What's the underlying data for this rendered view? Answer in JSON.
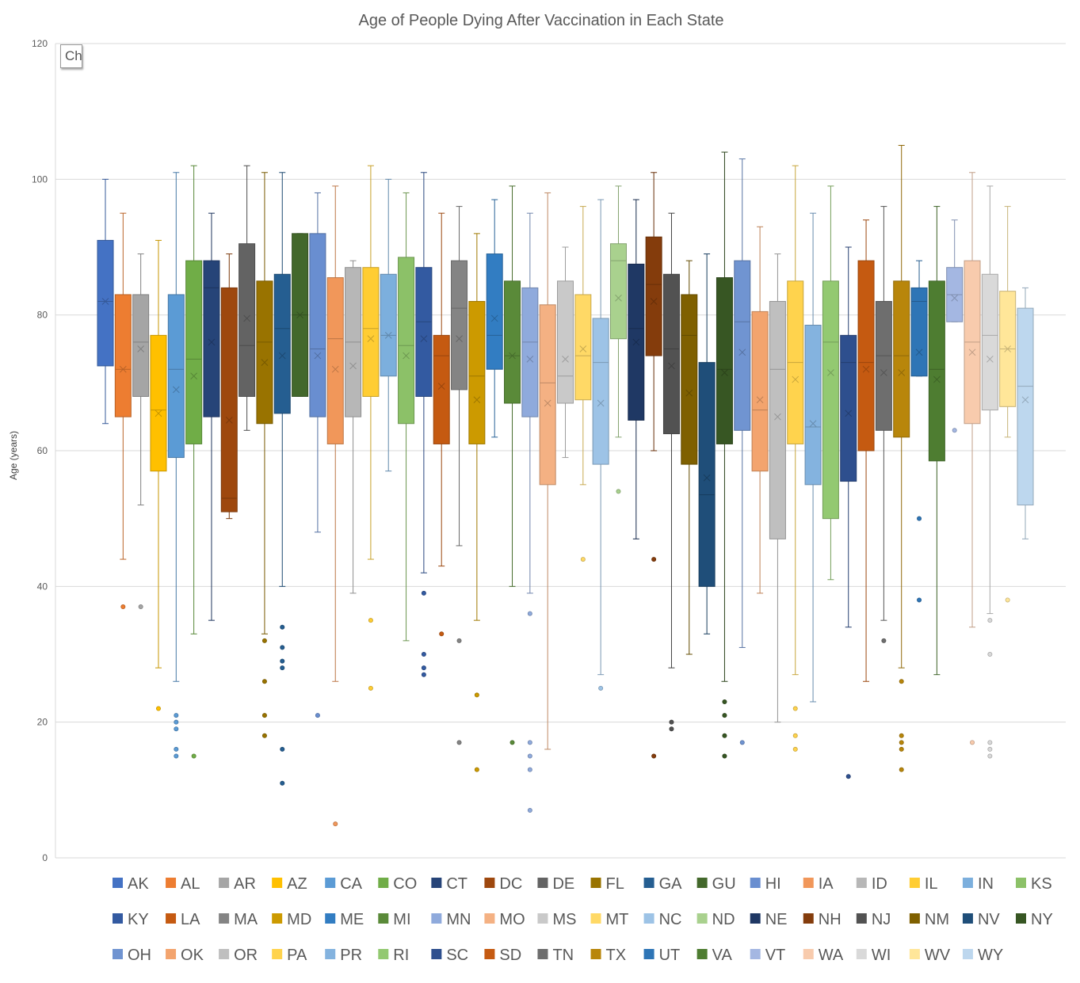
{
  "chart_data": {
    "type": "boxplot",
    "title": "Age of People Dying After Vaccination in Each State",
    "ylabel": "Age (years)",
    "xlabel": "",
    "ylim": [
      0,
      120
    ],
    "yticks": [
      0,
      20,
      40,
      60,
      80,
      100,
      120
    ],
    "grid": true,
    "legend_position": "bottom",
    "series": [
      {
        "name": "AK",
        "color": "#4472C4",
        "min": 64,
        "q1": 72.5,
        "median": 82,
        "q3": 91,
        "max": 100,
        "mean": 82,
        "outliers": []
      },
      {
        "name": "AL",
        "color": "#ED7D31",
        "min": 44,
        "q1": 65,
        "median": 72,
        "q3": 83,
        "max": 95,
        "mean": 72,
        "outliers": [
          37
        ]
      },
      {
        "name": "AR",
        "color": "#A5A5A5",
        "min": 52,
        "q1": 68,
        "median": 76,
        "q3": 83,
        "max": 89,
        "mean": 75,
        "outliers": [
          37
        ]
      },
      {
        "name": "AZ",
        "color": "#FFC000",
        "min": 28,
        "q1": 57,
        "median": 66,
        "q3": 77,
        "max": 91,
        "mean": 65.5,
        "outliers": [
          22
        ]
      },
      {
        "name": "CA",
        "color": "#5B9BD5",
        "min": 26,
        "q1": 59,
        "median": 72,
        "q3": 83,
        "max": 101,
        "mean": 69,
        "outliers": [
          21,
          20,
          19,
          16,
          15
        ]
      },
      {
        "name": "CO",
        "color": "#70AD47",
        "min": 33,
        "q1": 61,
        "median": 73.5,
        "q3": 88,
        "max": 102,
        "mean": 71,
        "outliers": [
          15
        ]
      },
      {
        "name": "CT",
        "color": "#264478",
        "min": 35,
        "q1": 65,
        "median": 84,
        "q3": 88,
        "max": 95,
        "mean": 76,
        "outliers": []
      },
      {
        "name": "DC",
        "color": "#9E480E",
        "min": 50,
        "q1": 51,
        "median": 53,
        "q3": 84,
        "max": 89,
        "mean": 64.5,
        "outliers": []
      },
      {
        "name": "DE",
        "color": "#636363",
        "min": 63,
        "q1": 68,
        "median": 75.5,
        "q3": 90.5,
        "max": 102,
        "mean": 79.5,
        "outliers": []
      },
      {
        "name": "FL",
        "color": "#997300",
        "min": 33,
        "q1": 64,
        "median": 76,
        "q3": 85,
        "max": 101,
        "mean": 73,
        "outliers": [
          32,
          26,
          21,
          18
        ]
      },
      {
        "name": "GA",
        "color": "#255E91",
        "min": 40,
        "q1": 65.5,
        "median": 78,
        "q3": 86,
        "max": 101,
        "mean": 74,
        "outliers": [
          34,
          31,
          29,
          28,
          16,
          11
        ]
      },
      {
        "name": "GU",
        "color": "#43682B",
        "min": 68,
        "q1": 68,
        "median": 80,
        "q3": 92,
        "max": 92,
        "mean": 80,
        "outliers": []
      },
      {
        "name": "HI",
        "color": "#698ED0",
        "min": 48,
        "q1": 65,
        "median": 75,
        "q3": 92,
        "max": 98,
        "mean": 74,
        "outliers": [
          21
        ]
      },
      {
        "name": "IA",
        "color": "#F1975A",
        "min": 26,
        "q1": 61,
        "median": 76.5,
        "q3": 85.5,
        "max": 99,
        "mean": 72,
        "outliers": [
          5
        ]
      },
      {
        "name": "ID",
        "color": "#B7B7B7",
        "min": 39,
        "q1": 65,
        "median": 76,
        "q3": 87,
        "max": 88,
        "mean": 72.5,
        "outliers": []
      },
      {
        "name": "IL",
        "color": "#FFCD33",
        "min": 44,
        "q1": 68,
        "median": 78,
        "q3": 87,
        "max": 102,
        "mean": 76.5,
        "outliers": [
          35,
          25
        ]
      },
      {
        "name": "IN",
        "color": "#7CAFDD",
        "min": 57,
        "q1": 71,
        "median": 77,
        "q3": 86,
        "max": 100,
        "mean": 77,
        "outliers": []
      },
      {
        "name": "KS",
        "color": "#8CC168",
        "min": 32,
        "q1": 64,
        "median": 75.5,
        "q3": 88.5,
        "max": 98,
        "mean": 74,
        "outliers": []
      },
      {
        "name": "KY",
        "color": "#335AA1",
        "min": 42,
        "q1": 68,
        "median": 79,
        "q3": 87,
        "max": 101,
        "mean": 76.5,
        "outliers": [
          39,
          30,
          28,
          27
        ]
      },
      {
        "name": "LA",
        "color": "#C55A11",
        "min": 43,
        "q1": 61,
        "median": 74,
        "q3": 77,
        "max": 95,
        "mean": 69.5,
        "outliers": [
          33
        ]
      },
      {
        "name": "MA",
        "color": "#848484",
        "min": 46,
        "q1": 69,
        "median": 81,
        "q3": 88,
        "max": 96,
        "mean": 76.5,
        "outliers": [
          32,
          17
        ]
      },
      {
        "name": "MD",
        "color": "#CC9A00",
        "min": 35,
        "q1": 61,
        "median": 71,
        "q3": 82,
        "max": 92,
        "mean": 67.5,
        "outliers": [
          24,
          13
        ]
      },
      {
        "name": "ME",
        "color": "#327DC2",
        "min": 62,
        "q1": 72,
        "median": 77,
        "q3": 89,
        "max": 97,
        "mean": 79.5,
        "outliers": []
      },
      {
        "name": "MI",
        "color": "#5A8A39",
        "min": 40,
        "q1": 67,
        "median": 74,
        "q3": 85,
        "max": 99,
        "mean": 74,
        "outliers": [
          17
        ]
      },
      {
        "name": "MN",
        "color": "#8FAADC",
        "min": 39,
        "q1": 65,
        "median": 76,
        "q3": 84,
        "max": 95,
        "mean": 73.5,
        "outliers": [
          36,
          17,
          15,
          13,
          7
        ]
      },
      {
        "name": "MO",
        "color": "#F4B183",
        "min": 16,
        "q1": 55,
        "median": 70,
        "q3": 81.5,
        "max": 98,
        "mean": 67,
        "outliers": []
      },
      {
        "name": "MS",
        "color": "#C9C9C9",
        "min": 59,
        "q1": 67,
        "median": 71,
        "q3": 85,
        "max": 90,
        "mean": 73.5,
        "outliers": []
      },
      {
        "name": "MT",
        "color": "#FFD966",
        "min": 55,
        "q1": 67.5,
        "median": 74,
        "q3": 83,
        "max": 96,
        "mean": 75,
        "outliers": [
          44
        ]
      },
      {
        "name": "NC",
        "color": "#9DC3E6",
        "min": 27,
        "q1": 58,
        "median": 73,
        "q3": 79.5,
        "max": 97,
        "mean": 67,
        "outliers": [
          25
        ]
      },
      {
        "name": "ND",
        "color": "#A9D18E",
        "min": 62,
        "q1": 76.5,
        "median": 88,
        "q3": 90.5,
        "max": 99,
        "mean": 82.5,
        "outliers": [
          54
        ]
      },
      {
        "name": "NE",
        "color": "#1F3864",
        "min": 47,
        "q1": 64.5,
        "median": 78,
        "q3": 87.5,
        "max": 97,
        "mean": 76,
        "outliers": []
      },
      {
        "name": "NH",
        "color": "#843C0C",
        "min": 60,
        "q1": 74,
        "median": 84.5,
        "q3": 91.5,
        "max": 101,
        "mean": 82,
        "outliers": [
          44,
          15
        ]
      },
      {
        "name": "NJ",
        "color": "#525252",
        "min": 28,
        "q1": 62.5,
        "median": 75,
        "q3": 86,
        "max": 95,
        "mean": 72.5,
        "outliers": [
          20,
          19
        ]
      },
      {
        "name": "NM",
        "color": "#7F6000",
        "min": 30,
        "q1": 58,
        "median": 77,
        "q3": 83,
        "max": 88,
        "mean": 68.5,
        "outliers": []
      },
      {
        "name": "NV",
        "color": "#1F4E79",
        "min": 33,
        "q1": 40,
        "median": 53.5,
        "q3": 73,
        "max": 89,
        "mean": 56,
        "outliers": []
      },
      {
        "name": "NY",
        "color": "#375623",
        "min": 26,
        "q1": 61,
        "median": 72,
        "q3": 85.5,
        "max": 104,
        "mean": 71.5,
        "outliers": [
          23,
          21,
          18,
          15
        ]
      },
      {
        "name": "OH",
        "color": "#7094D1",
        "min": 31,
        "q1": 63,
        "median": 79,
        "q3": 88,
        "max": 103,
        "mean": 74.5,
        "outliers": [
          17
        ]
      },
      {
        "name": "OK",
        "color": "#F3A46E",
        "min": 39,
        "q1": 57,
        "median": 66,
        "q3": 80.5,
        "max": 93,
        "mean": 67.5,
        "outliers": []
      },
      {
        "name": "OR",
        "color": "#BFBFBF",
        "min": 20,
        "q1": 47,
        "median": 72,
        "q3": 82,
        "max": 89,
        "mean": 65,
        "outliers": []
      },
      {
        "name": "PA",
        "color": "#FFD34D",
        "min": 27,
        "q1": 61,
        "median": 73,
        "q3": 85,
        "max": 102,
        "mean": 70.5,
        "outliers": [
          22,
          18,
          16
        ]
      },
      {
        "name": "PR",
        "color": "#84B3DF",
        "min": 23,
        "q1": 55,
        "median": 63.5,
        "q3": 78.5,
        "max": 95,
        "mean": 64,
        "outliers": []
      },
      {
        "name": "RI",
        "color": "#93C971",
        "min": 41,
        "q1": 50,
        "median": 76,
        "q3": 85,
        "max": 99,
        "mean": 71.5,
        "outliers": []
      },
      {
        "name": "SC",
        "color": "#2E4F8E",
        "min": 34,
        "q1": 55.5,
        "median": 73,
        "q3": 77,
        "max": 90,
        "mean": 65.5,
        "outliers": [
          12
        ]
      },
      {
        "name": "SD",
        "color": "#C55A11",
        "min": 26,
        "q1": 60,
        "median": 73,
        "q3": 88,
        "max": 94,
        "mean": 72,
        "outliers": []
      },
      {
        "name": "TN",
        "color": "#6E6E6E",
        "min": 35,
        "q1": 63,
        "median": 74,
        "q3": 82,
        "max": 96,
        "mean": 71.5,
        "outliers": [
          32
        ]
      },
      {
        "name": "TX",
        "color": "#B8860B",
        "min": 28,
        "q1": 62,
        "median": 74,
        "q3": 85,
        "max": 105,
        "mean": 71.5,
        "outliers": [
          26,
          18,
          17,
          16,
          13
        ]
      },
      {
        "name": "UT",
        "color": "#2E75B6",
        "min": 71,
        "q1": 71,
        "median": 82,
        "q3": 84,
        "max": 88,
        "mean": 74.5,
        "outliers": [
          50,
          38
        ]
      },
      {
        "name": "VA",
        "color": "#4E7D31",
        "min": 27,
        "q1": 58.5,
        "median": 72,
        "q3": 85,
        "max": 96,
        "mean": 70.5,
        "outliers": []
      },
      {
        "name": "VT",
        "color": "#A4B7E2",
        "min": 79,
        "q1": 79,
        "median": 83,
        "q3": 87,
        "max": 94,
        "mean": 82.5,
        "outliers": [
          63
        ]
      },
      {
        "name": "WA",
        "color": "#F8CBAD",
        "min": 34,
        "q1": 64,
        "median": 76,
        "q3": 88,
        "max": 101,
        "mean": 74.5,
        "outliers": [
          17
        ]
      },
      {
        "name": "WI",
        "color": "#D9D9D9",
        "min": 36,
        "q1": 66,
        "median": 77,
        "q3": 86,
        "max": 99,
        "mean": 73.5,
        "outliers": [
          35,
          30,
          17,
          16,
          15
        ]
      },
      {
        "name": "WV",
        "color": "#FFE699",
        "min": 62,
        "q1": 66.5,
        "median": 75,
        "q3": 83.5,
        "max": 96,
        "mean": 75,
        "outliers": [
          38
        ]
      },
      {
        "name": "WY",
        "color": "#BDD7EE",
        "min": 47,
        "q1": 52,
        "median": 69.5,
        "q3": 81,
        "max": 84,
        "mean": 67.5,
        "outliers": []
      }
    ]
  },
  "ui": {
    "chart_button_label": "Ch"
  }
}
